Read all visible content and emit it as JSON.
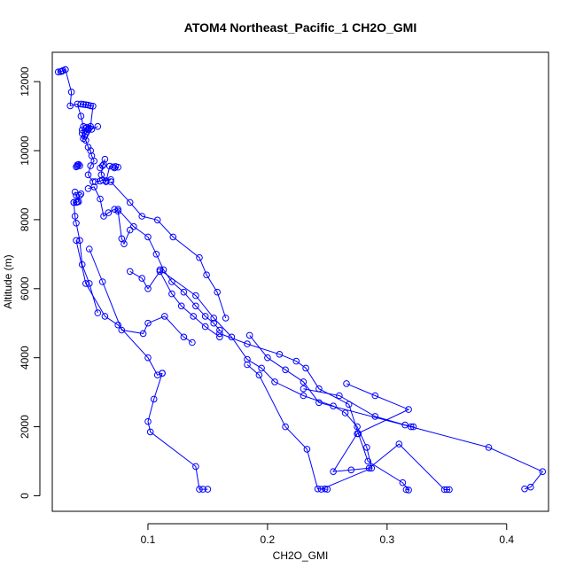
{
  "chart_data": {
    "type": "line",
    "title": "ATOM4 Northeast_Pacific_1 CH2O_GMI",
    "xlabel": "CH2O_GMI",
    "ylabel": "Altitude (m)",
    "xlim": [
      0.02,
      0.435
    ],
    "ylim": [
      -450,
      12850
    ],
    "xticks": [
      0.1,
      0.2,
      0.3,
      0.4
    ],
    "xtick_labels": [
      "0.1",
      "0.2",
      "0.3",
      "0.4"
    ],
    "yticks": [
      0,
      2000,
      4000,
      6000,
      8000,
      10000,
      12000
    ],
    "ytick_labels": [
      "0",
      "2000",
      "4000",
      "6000",
      "8000",
      "10000",
      "12000"
    ],
    "grid": false,
    "color": "#0000ff",
    "marker": "open-circle",
    "series": [
      {
        "x": [
          0.025,
          0.027,
          0.028,
          0.029,
          0.031
        ],
        "y": [
          12280,
          12290,
          12300,
          12320,
          12350
        ]
      },
      {
        "x": [
          0.031,
          0.036,
          0.035,
          0.041,
          0.044,
          0.046,
          0.045,
          0.048,
          0.05,
          0.052,
          0.053,
          0.055,
          0.052,
          0.05,
          0.054
        ],
        "y": [
          12350,
          11700,
          11300,
          11350,
          11000,
          10700,
          10500,
          10300,
          10100,
          10000,
          9850,
          9700,
          9560,
          9300,
          9100
        ]
      },
      {
        "x": [
          0.044,
          0.046,
          0.048,
          0.05,
          0.052,
          0.054,
          0.052,
          0.049,
          0.048,
          0.05,
          0.053,
          0.058
        ],
        "y": [
          11350,
          11340,
          11330,
          11320,
          11300,
          11290,
          10700,
          10680,
          10650,
          10630,
          10620,
          10700
        ]
      },
      {
        "x": [
          0.051,
          0.05,
          0.049,
          0.048,
          0.047,
          0.046,
          0.045
        ],
        "y": [
          10650,
          10600,
          10550,
          10480,
          10410,
          10350,
          10600
        ]
      },
      {
        "x": [
          0.04,
          0.041,
          0.043,
          0.042,
          0.041
        ],
        "y": [
          9530,
          9550,
          9560,
          9600,
          9590
        ]
      },
      {
        "x": [
          0.06,
          0.063,
          0.064,
          0.062,
          0.061,
          0.065,
          0.068,
          0.071,
          0.073,
          0.075,
          0.072
        ],
        "y": [
          9500,
          9600,
          9750,
          9560,
          9300,
          9100,
          9550,
          9530,
          9540,
          9520,
          9500
        ]
      },
      {
        "x": [
          0.056,
          0.06,
          0.062,
          0.065,
          0.069
        ],
        "y": [
          9100,
          9120,
          9150,
          9130,
          9160
        ]
      },
      {
        "x": [
          0.039,
          0.04,
          0.04,
          0.038,
          0.039,
          0.04,
          0.043,
          0.045,
          0.051,
          0.058
        ],
        "y": [
          8800,
          8700,
          8500,
          8500,
          8100,
          7900,
          7400,
          6700,
          6150,
          5300
        ]
      },
      {
        "x": [
          0.038,
          0.041,
          0.042,
          0.043,
          0.044
        ],
        "y": [
          8500,
          8510,
          8520,
          8700,
          8750
        ]
      },
      {
        "x": [
          0.05,
          0.055,
          0.06,
          0.063,
          0.067,
          0.072,
          0.075,
          0.078,
          0.08,
          0.085
        ],
        "y": [
          8900,
          8950,
          8600,
          8100,
          8200,
          8300,
          8250,
          7450,
          7300,
          7700
        ]
      },
      {
        "x": [
          0.075,
          0.088,
          0.1,
          0.107,
          0.113,
          0.12,
          0.13,
          0.14,
          0.148,
          0.155,
          0.16
        ],
        "y": [
          8300,
          7800,
          7500,
          7000,
          6550,
          6200,
          5900,
          5500,
          5200,
          5000,
          4800
        ]
      },
      {
        "x": [
          0.069,
          0.085,
          0.095,
          0.108,
          0.121,
          0.143,
          0.149,
          0.158,
          0.165
        ],
        "y": [
          9100,
          8500,
          8100,
          7990,
          7500,
          6900,
          6400,
          5900,
          5150
        ]
      },
      {
        "x": [
          0.085,
          0.095,
          0.1,
          0.11,
          0.12,
          0.128,
          0.138,
          0.148,
          0.16
        ],
        "y": [
          6500,
          6300,
          6000,
          6500,
          5850,
          5500,
          5200,
          4900,
          4600
        ]
      },
      {
        "x": [
          0.051,
          0.062,
          0.078,
          0.096,
          0.1,
          0.114,
          0.13,
          0.137
        ],
        "y": [
          7150,
          6200,
          4800,
          4700,
          5000,
          5200,
          4600,
          4440
        ]
      },
      {
        "x": [
          0.04,
          0.048,
          0.064,
          0.075,
          0.1,
          0.108,
          0.112
        ],
        "y": [
          7400,
          6150,
          5200,
          4950,
          4000,
          3500,
          3550
        ]
      },
      {
        "x": [
          0.112,
          0.105,
          0.1,
          0.102,
          0.14,
          0.143,
          0.146,
          0.15
        ],
        "y": [
          3550,
          2800,
          2150,
          1850,
          850,
          190,
          190,
          190
        ]
      },
      {
        "x": [
          0.11,
          0.14,
          0.155,
          0.17,
          0.183,
          0.195,
          0.206,
          0.23,
          0.255,
          0.265,
          0.275,
          0.283,
          0.287,
          0.245,
          0.25
        ],
        "y": [
          6550,
          5800,
          5150,
          4600,
          3950,
          3700,
          3300,
          2900,
          2600,
          2400,
          2000,
          1400,
          800,
          190,
          190
        ]
      },
      {
        "x": [
          0.16,
          0.183,
          0.21,
          0.224,
          0.232,
          0.243,
          0.268,
          0.276,
          0.284,
          0.313,
          0.318,
          0.316
        ],
        "y": [
          4700,
          4400,
          4100,
          3900,
          3700,
          3100,
          2650,
          1800,
          1000,
          380,
          170,
          180
        ]
      },
      {
        "x": [
          0.185,
          0.2,
          0.215,
          0.23,
          0.243,
          0.32,
          0.385,
          0.43,
          0.42,
          0.415
        ],
        "y": [
          4650,
          4000,
          3650,
          3300,
          2700,
          2000,
          1400,
          700,
          250,
          200
        ]
      },
      {
        "x": [
          0.183,
          0.193,
          0.215,
          0.233,
          0.242,
          0.248
        ],
        "y": [
          3800,
          3500,
          2000,
          1350,
          200,
          200
        ]
      },
      {
        "x": [
          0.266,
          0.29,
          0.318,
          0.275,
          0.255,
          0.27,
          0.285,
          0.31,
          0.348,
          0.35,
          0.352
        ],
        "y": [
          3250,
          2900,
          2500,
          1800,
          700,
          750,
          800,
          1500,
          180,
          180,
          180
        ]
      },
      {
        "x": [
          0.23,
          0.26,
          0.29,
          0.315,
          0.322
        ],
        "y": [
          3100,
          2900,
          2300,
          2050,
          2000
        ]
      }
    ]
  }
}
